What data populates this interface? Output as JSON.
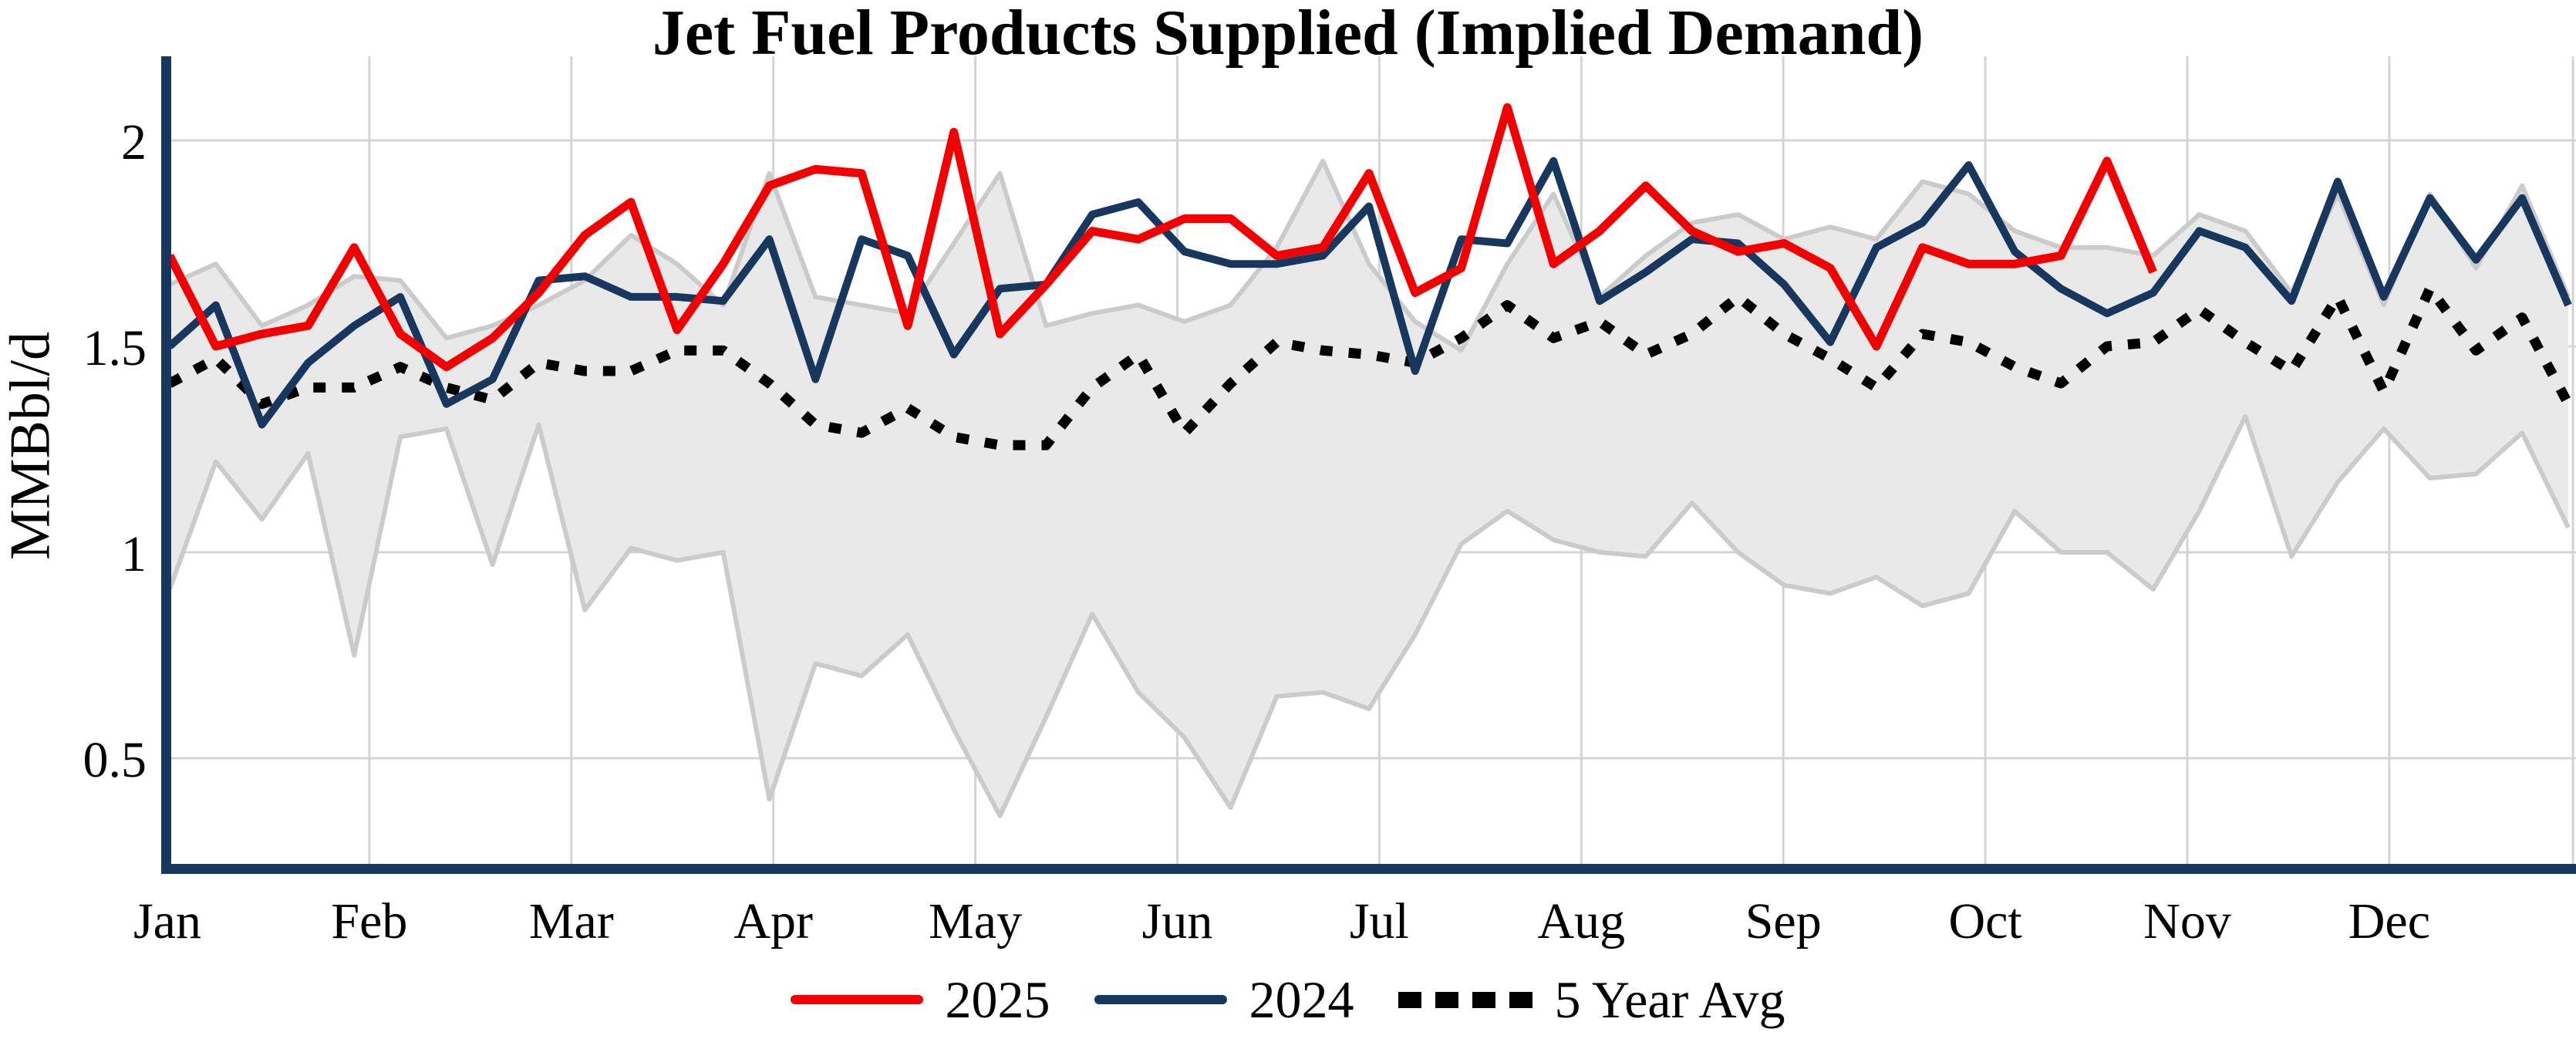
{
  "title": "Jet Fuel Products Supplied (Implied Demand)",
  "y_axis": {
    "label": "MMBbl/d",
    "tick_labels": [
      "2",
      "1.5",
      "1",
      "0.5"
    ],
    "tick_values": [
      2,
      1.5,
      1,
      0.5
    ]
  },
  "x_axis": {
    "months": [
      "Jan",
      "Feb",
      "Mar",
      "Apr",
      "May",
      "Jun",
      "Jul",
      "Aug",
      "Sep",
      "Oct",
      "Nov",
      "Dec"
    ]
  },
  "legend": {
    "items": [
      {
        "label": "2025",
        "style": "solid",
        "color": "#f50000"
      },
      {
        "label": "2024",
        "style": "solid",
        "color": "#17375e"
      },
      {
        "label": "5 Year Avg",
        "style": "dotted",
        "color": "#000000"
      }
    ]
  },
  "colors": {
    "red": "#f50000",
    "navy": "#17375e",
    "black": "#000000",
    "band_fill": "#e9e9e9",
    "band_edge": "#cbcbcb",
    "gridline": "#d4d4d4",
    "axis": "#17375e"
  },
  "chart_data": {
    "type": "line",
    "title": "Jet Fuel Products Supplied (Implied Demand)",
    "xlabel": "",
    "ylabel": "MMBbl/d",
    "x_unit": "week of year (Jan-Dec)",
    "ylim": [
      0.25,
      2.2
    ],
    "grid": true,
    "legend_position": "bottom",
    "band": {
      "name": "5 year min/max range",
      "fill": "#e9e9e9",
      "edge": "#cbcbcb",
      "upper": [
        1.65,
        1.7,
        1.55,
        1.6,
        1.67,
        1.66,
        1.52,
        1.55,
        1.6,
        1.66,
        1.77,
        1.7,
        1.6,
        1.92,
        1.62,
        1.6,
        1.58,
        1.75,
        1.92,
        1.55,
        1.58,
        1.6,
        1.56,
        1.6,
        1.74,
        1.95,
        1.7,
        1.56,
        1.49,
        1.7,
        1.87,
        1.62,
        1.72,
        1.8,
        1.82,
        1.76,
        1.79,
        1.76,
        1.9,
        1.87,
        1.78,
        1.74,
        1.74,
        1.72,
        1.82,
        1.78,
        1.63,
        1.87,
        1.6,
        1.87,
        1.69,
        1.89,
        1.62
      ],
      "lower": [
        0.91,
        1.22,
        1.08,
        1.24,
        0.75,
        1.28,
        1.3,
        0.97,
        1.31,
        0.86,
        1.01,
        0.98,
        1.0,
        0.4,
        0.73,
        0.7,
        0.8,
        0.57,
        0.36,
        0.6,
        0.85,
        0.66,
        0.55,
        0.38,
        0.65,
        0.66,
        0.62,
        0.8,
        1.02,
        1.1,
        1.03,
        1.0,
        0.99,
        1.12,
        1.0,
        0.92,
        0.9,
        0.94,
        0.87,
        0.9,
        1.1,
        1.0,
        1.0,
        0.91,
        1.1,
        1.33,
        0.99,
        1.17,
        1.3,
        1.18,
        1.19,
        1.29,
        1.06
      ]
    },
    "series": [
      {
        "name": "2025",
        "color": "#f50000",
        "line": "solid",
        "values": [
          1.72,
          1.5,
          1.53,
          1.55,
          1.74,
          1.53,
          1.45,
          1.52,
          1.63,
          1.77,
          1.85,
          1.54,
          1.7,
          1.89,
          1.93,
          1.92,
          1.55,
          2.02,
          1.53,
          1.65,
          1.78,
          1.76,
          1.81,
          1.81,
          1.72,
          1.74,
          1.92,
          1.63,
          1.69,
          2.08,
          1.7,
          1.78,
          1.89,
          1.78,
          1.73,
          1.75,
          1.69,
          1.5,
          1.74,
          1.7,
          1.7,
          1.72,
          1.95,
          1.68
        ]
      },
      {
        "name": "2024",
        "color": "#17375e",
        "line": "solid",
        "values": [
          1.5,
          1.6,
          1.31,
          1.46,
          1.55,
          1.62,
          1.36,
          1.42,
          1.66,
          1.67,
          1.62,
          1.62,
          1.61,
          1.76,
          1.42,
          1.76,
          1.72,
          1.48,
          1.64,
          1.65,
          1.82,
          1.85,
          1.73,
          1.7,
          1.7,
          1.72,
          1.84,
          1.44,
          1.76,
          1.75,
          1.95,
          1.61,
          1.68,
          1.76,
          1.75,
          1.65,
          1.51,
          1.74,
          1.8,
          1.94,
          1.73,
          1.64,
          1.58,
          1.63,
          1.78,
          1.74,
          1.61,
          1.9,
          1.62,
          1.86,
          1.71,
          1.86,
          1.6
        ]
      },
      {
        "name": "5 Year Avg",
        "color": "#000000",
        "line": "dotted",
        "values": [
          1.41,
          1.47,
          1.36,
          1.4,
          1.4,
          1.45,
          1.4,
          1.37,
          1.46,
          1.44,
          1.44,
          1.49,
          1.49,
          1.41,
          1.31,
          1.29,
          1.35,
          1.28,
          1.26,
          1.26,
          1.4,
          1.48,
          1.29,
          1.41,
          1.51,
          1.49,
          1.48,
          1.46,
          1.52,
          1.6,
          1.52,
          1.56,
          1.48,
          1.53,
          1.62,
          1.53,
          1.47,
          1.4,
          1.53,
          1.51,
          1.45,
          1.41,
          1.5,
          1.51,
          1.59,
          1.51,
          1.44,
          1.62,
          1.39,
          1.64,
          1.49,
          1.57,
          1.36
        ]
      }
    ]
  }
}
